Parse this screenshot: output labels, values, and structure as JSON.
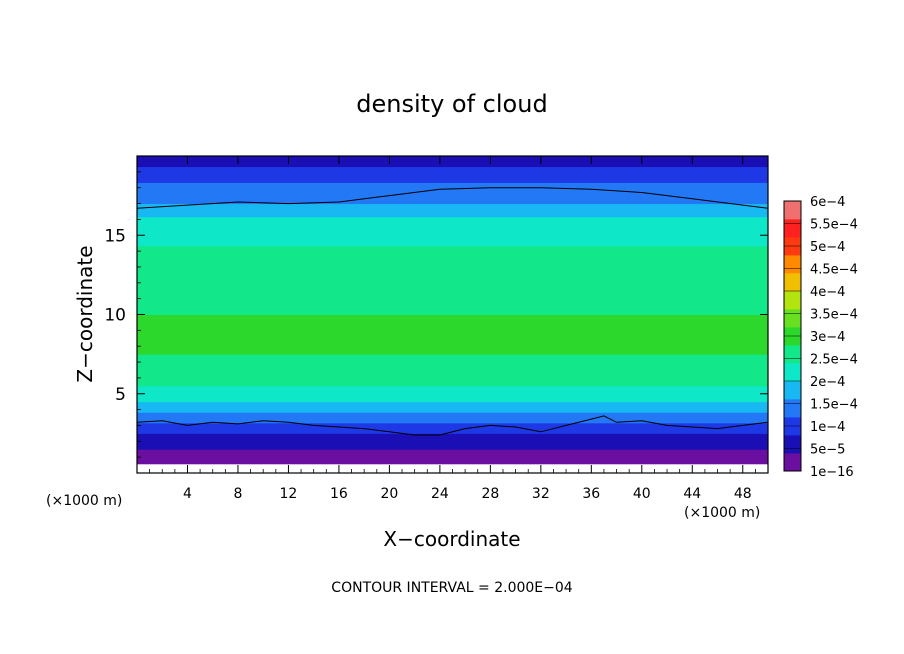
{
  "chart_data": {
    "type": "heatmap",
    "title": "density of cloud",
    "xlabel": "X−coordinate",
    "ylabel": "Z−coordinate",
    "x_unit_label": "(×1000 m)",
    "y_unit_label": "(×1000 m)",
    "footer": "CONTOUR INTERVAL = 2.000E−04",
    "xlim": [
      0,
      50
    ],
    "ylim": [
      0,
      20
    ],
    "x_ticks": [
      4,
      8,
      12,
      16,
      20,
      24,
      28,
      32,
      36,
      40,
      44,
      48
    ],
    "x_tick_labels": [
      "4",
      "8",
      "12",
      "16",
      "20",
      "24",
      "28",
      "32",
      "36",
      "40",
      "44",
      "48"
    ],
    "y_ticks": [
      5,
      10,
      15
    ],
    "y_tick_labels": [
      "5",
      "10",
      "15"
    ],
    "colorbar": {
      "levels": [
        1e-16,
        5e-05,
        0.0001,
        0.00015,
        0.0002,
        0.00025,
        0.0003,
        0.00035,
        0.0004,
        0.00045,
        0.0005,
        0.00055,
        0.0006
      ],
      "labels": [
        "1e−16",
        "5e−5",
        "1e−4",
        "1.5e−4",
        "2e−4",
        "2.5e−4",
        "3e−4",
        "3.5e−4",
        "4e−4",
        "4.5e−4",
        "5e−4",
        "5.5e−4",
        "6e−4"
      ],
      "colors": [
        "#6a0fa0",
        "#1a0fb4",
        "#1f38e6",
        "#2278f5",
        "#18b8f2",
        "#0ee8c8",
        "#12e88a",
        "#2cd82c",
        "#68e020",
        "#b4e410",
        "#f0c000",
        "#ff8a00",
        "#ff3a10",
        "#ff2020",
        "#f07070"
      ]
    },
    "profile_note_z": [
      0.6,
      1.5,
      2.5,
      3.2,
      4.5,
      6,
      8,
      10,
      12,
      14,
      16,
      17,
      18,
      19,
      19.8
    ],
    "profile_density": [
      1e-16,
      5e-05,
      0.0001,
      0.00015,
      0.00025,
      0.00032,
      0.00036,
      0.00035,
      0.00033,
      0.00031,
      0.00026,
      0.0002,
      0.00016,
      0.00012,
      8e-05
    ],
    "contour_lines": [
      {
        "level": 0.0002,
        "x": [
          0,
          4,
          8,
          12,
          16,
          20,
          24,
          28,
          32,
          36,
          40,
          44,
          48,
          50
        ],
        "z": [
          16.7,
          16.9,
          17.1,
          17.0,
          17.1,
          17.5,
          17.9,
          18.0,
          18.0,
          17.9,
          17.7,
          17.3,
          16.9,
          16.7
        ]
      },
      {
        "level": 0.0002,
        "x": [
          0,
          2,
          4,
          6,
          8,
          10,
          12,
          14,
          16,
          18,
          20,
          22,
          24,
          26,
          28,
          30,
          32,
          34,
          36,
          37,
          38,
          40,
          42,
          44,
          46,
          48,
          50
        ],
        "z": [
          3.2,
          3.3,
          3.0,
          3.2,
          3.1,
          3.3,
          3.2,
          3.0,
          2.9,
          2.8,
          2.6,
          2.4,
          2.4,
          2.8,
          3.0,
          2.9,
          2.6,
          3.0,
          3.4,
          3.6,
          3.2,
          3.3,
          3.0,
          2.9,
          2.8,
          3.0,
          3.2
        ]
      }
    ]
  }
}
